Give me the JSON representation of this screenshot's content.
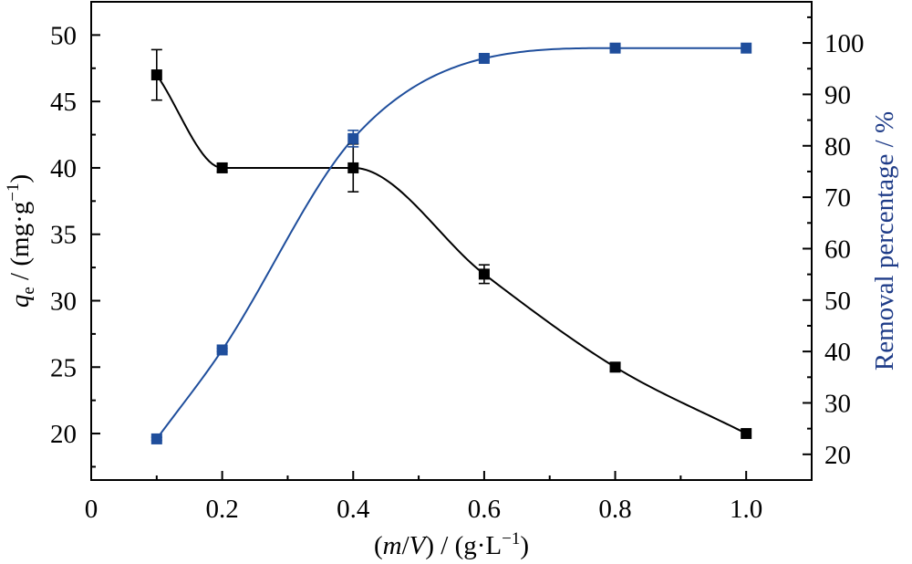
{
  "chart_data": {
    "type": "scatter",
    "title": "",
    "xlabel": "(m/V) / (g·L⁻¹)",
    "xlabel_parts": {
      "open": "(",
      "m": "m",
      "slash": "/",
      "v": "V",
      "rest": ") / (g·L",
      "sup": "−1",
      "close": ")"
    },
    "ylabel_left": "qe / (mg·g⁻¹)",
    "ylabel_left_parts": {
      "q": "q",
      "sub": "e",
      "rest": " / (mg·g",
      "sup": "−1",
      "close": ")"
    },
    "ylabel_right": "Removal percentage / %",
    "xlim": [
      0,
      1.1
    ],
    "ylim_left": [
      16.5,
      52.5
    ],
    "ylim_right": [
      15,
      108
    ],
    "x_ticks": [
      "0",
      "0.2",
      "0.4",
      "0.6",
      "0.8",
      "1.0"
    ],
    "x_tick_values": [
      0,
      0.2,
      0.4,
      0.6,
      0.8,
      1.0
    ],
    "y_left_ticks": [
      20,
      25,
      30,
      35,
      40,
      45,
      50
    ],
    "y_right_ticks": [
      20,
      30,
      40,
      50,
      60,
      70,
      80,
      90,
      100
    ],
    "grid": false,
    "legend": "none",
    "series": [
      {
        "axis": "left",
        "color": "#000000",
        "x": [
          0.1,
          0.2,
          0.4,
          0.6,
          0.8,
          1.0
        ],
        "y": [
          47.0,
          40.0,
          40.0,
          32.0,
          25.0,
          20.0
        ],
        "error": [
          1.9,
          0.3,
          1.8,
          0.7,
          0.3,
          0.0
        ]
      },
      {
        "axis": "right",
        "color": "#1f4e9c",
        "x": [
          0.1,
          0.2,
          0.4,
          0.6,
          0.8,
          1.0
        ],
        "y": [
          23.0,
          40.3,
          81.4,
          97.0,
          99.0,
          99.0
        ],
        "error": [
          0.3,
          0.3,
          1.6,
          0.5,
          0.4,
          0.0
        ]
      }
    ]
  }
}
